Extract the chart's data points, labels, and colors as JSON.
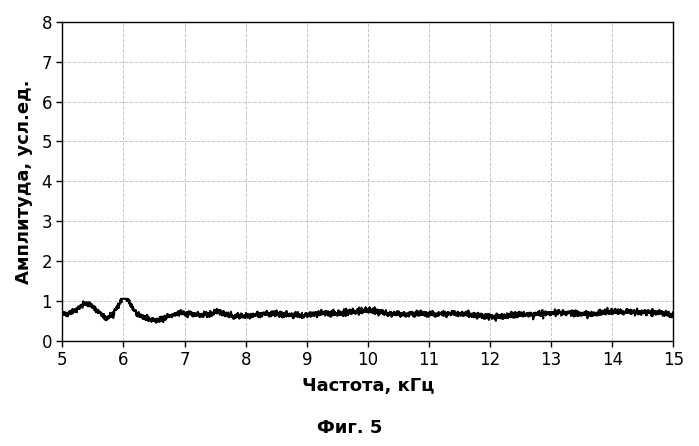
{
  "xlabel": "Частота, кГц",
  "ylabel": "Амплитуда, усл.ед.",
  "caption": "Фиг. 5",
  "xlim": [
    5,
    15
  ],
  "ylim": [
    0,
    8
  ],
  "xticks": [
    5,
    6,
    7,
    8,
    9,
    10,
    11,
    12,
    13,
    14,
    15
  ],
  "yticks": [
    0,
    1,
    2,
    3,
    4,
    5,
    6,
    7,
    8
  ],
  "line_color": "#000000",
  "line_width": 1.4,
  "bg_color": "#ffffff",
  "grid_color": "#c0c0c0",
  "grid_linestyle": "--",
  "grid_alpha": 0.9,
  "font_size": 13,
  "caption_font_size": 13,
  "tick_font_size": 12
}
